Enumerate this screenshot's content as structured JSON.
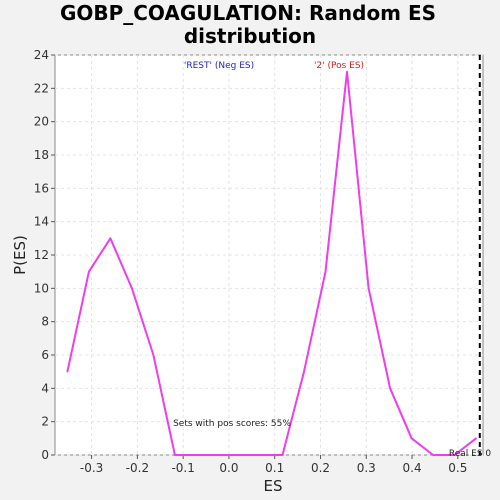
{
  "chart_data": {
    "type": "line",
    "title_line1": "GOBP_COAGULATION: Random ES",
    "title_line2": "distribution",
    "xlabel": "ES",
    "ylabel": "P(ES)",
    "xlim": [
      -0.38,
      0.555
    ],
    "ylim": [
      0,
      24
    ],
    "x_ticks": [
      -0.3,
      -0.2,
      -0.1,
      0.0,
      0.1,
      0.2,
      0.3,
      0.4,
      0.5
    ],
    "x_tick_labels": [
      "-0.3",
      "-0.2",
      "-0.1",
      "0.0",
      "0.1",
      "0.2",
      "0.3",
      "0.4",
      "0.5"
    ],
    "y_ticks": [
      0,
      2,
      4,
      6,
      8,
      10,
      12,
      14,
      16,
      18,
      20,
      22,
      24
    ],
    "y_tick_labels": [
      "0",
      "2",
      "4",
      "6",
      "8",
      "10",
      "12",
      "14",
      "16",
      "18",
      "20",
      "22",
      "24"
    ],
    "grid": true,
    "series": [
      {
        "color": "#ee3cee",
        "x": [
          -0.353,
          -0.306,
          -0.259,
          -0.212,
          -0.165,
          -0.118,
          0.117,
          0.164,
          0.211,
          0.258,
          0.305,
          0.352,
          0.399,
          0.446,
          0.493,
          0.54
        ],
        "y": [
          5,
          11,
          13,
          10,
          6,
          0,
          0,
          5,
          11,
          23,
          10,
          4,
          1,
          0,
          0,
          1
        ]
      }
    ],
    "real_es": {
      "x": 0.548,
      "label": "Real ES 0"
    },
    "annotations": {
      "neg_label": "'REST' (Neg ES)",
      "neg_color": "#2222cc",
      "pos_label": "'2' (Pos ES)",
      "pos_color": "#cc2222",
      "pos_scores": "Sets with pos scores: 55%"
    }
  }
}
